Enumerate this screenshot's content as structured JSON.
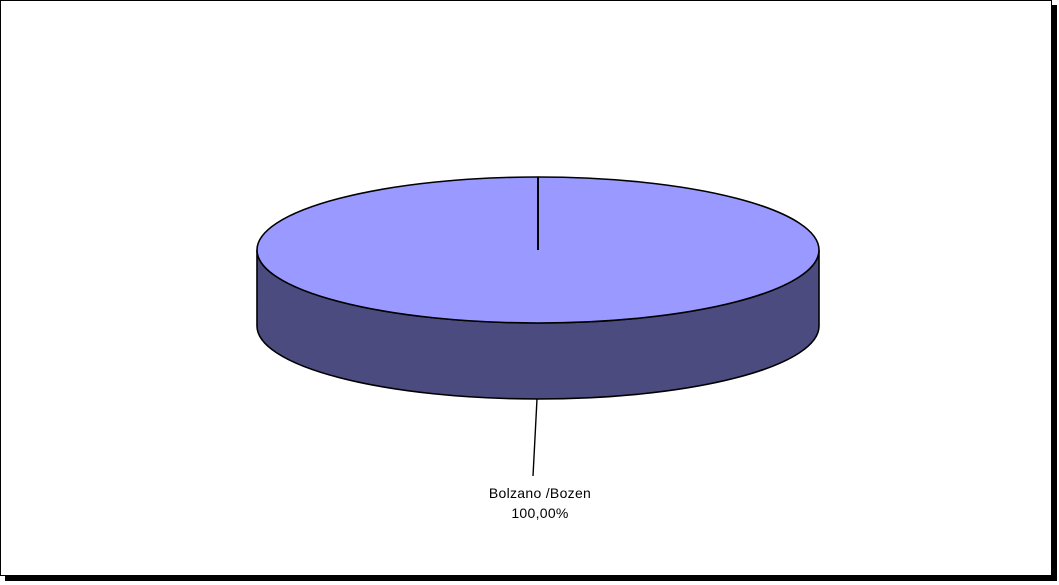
{
  "chart_data": {
    "type": "pie",
    "style": "3d",
    "slices": [
      {
        "label": "Bolzano /Bozen",
        "value": 100.0,
        "value_label": "100,00%",
        "color": "#9999ff",
        "side_color": "#4b4b80"
      }
    ],
    "legend": "none"
  }
}
